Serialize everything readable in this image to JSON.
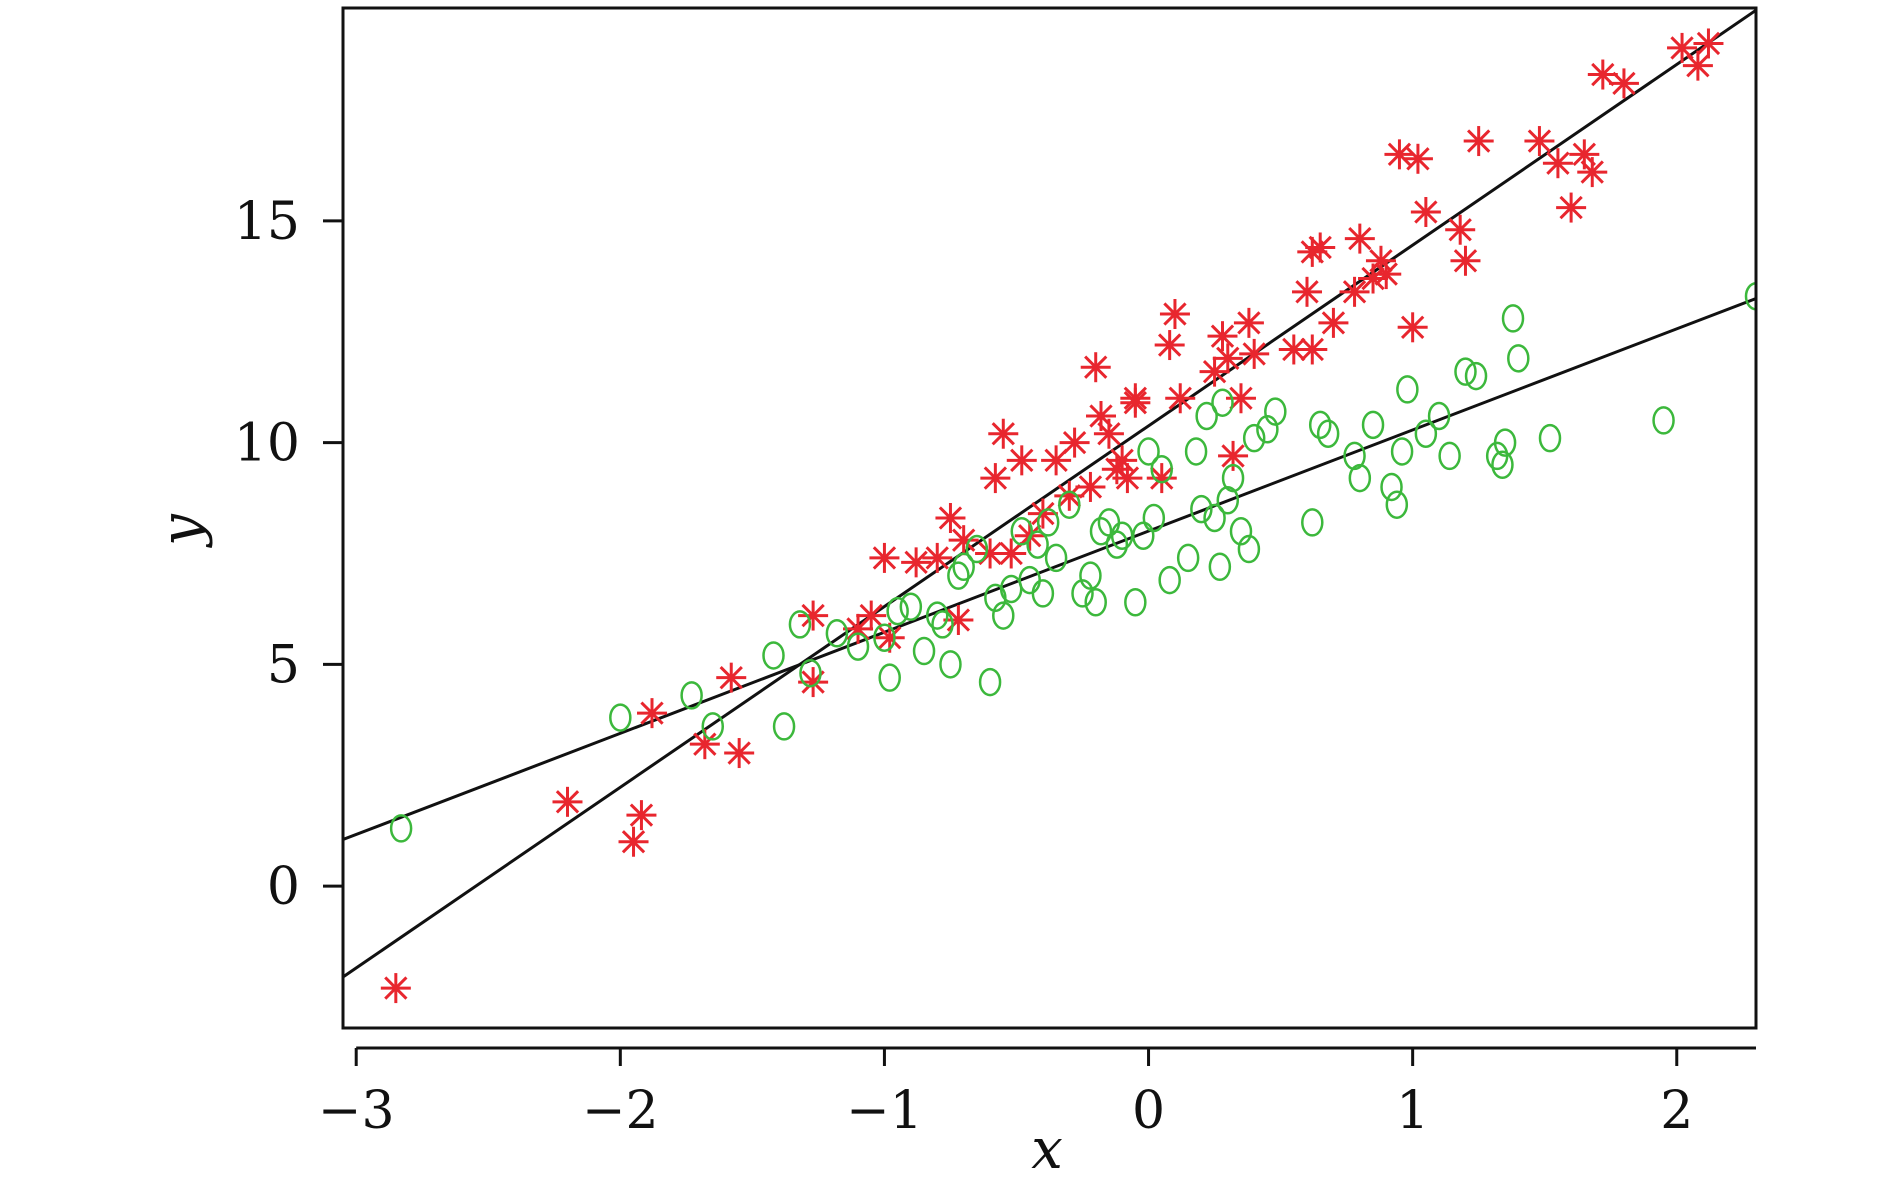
{
  "chart_data": {
    "type": "scatter",
    "title": "",
    "xlabel": "x",
    "ylabel": "y",
    "xlim": [
      -3.05,
      2.3
    ],
    "ylim": [
      -3.2,
      19.8
    ],
    "xticks": [
      -3,
      -2,
      -1,
      0,
      1,
      2
    ],
    "xtick_labels": [
      "−3",
      "−2",
      "−1",
      "0",
      "1",
      "2"
    ],
    "yticks": [
      0,
      5,
      10,
      15
    ],
    "ytick_labels": [
      "0",
      "5",
      "10",
      "15"
    ],
    "grid": false,
    "legend": "none",
    "colors": {
      "red": "#e8262e",
      "green": "#3cb83c",
      "line": "#111111"
    },
    "series": [
      {
        "marker": "asterisk",
        "color": "#e8262e",
        "x": [
          -2.85,
          -2.2,
          -1.95,
          -1.92,
          -1.88,
          -1.68,
          -1.58,
          -1.55,
          -1.27,
          -1.27,
          -1.1,
          -1.05,
          -1.0,
          -0.98,
          -0.88,
          -0.8,
          -0.75,
          -0.72,
          -0.7,
          -0.6,
          -0.58,
          -0.55,
          -0.52,
          -0.48,
          -0.45,
          -0.4,
          -0.35,
          -0.3,
          -0.28,
          -0.22,
          -0.2,
          -0.18,
          -0.15,
          -0.12,
          -0.1,
          -0.08,
          -0.05,
          -0.05,
          0.05,
          0.08,
          0.1,
          0.12,
          0.25,
          0.28,
          0.3,
          0.32,
          0.35,
          0.38,
          0.4,
          0.55,
          0.6,
          0.62,
          0.62,
          0.65,
          0.7,
          0.78,
          0.8,
          0.85,
          0.88,
          0.9,
          0.95,
          1.0,
          1.02,
          1.05,
          1.18,
          1.2,
          1.25,
          1.48,
          1.55,
          1.6,
          1.65,
          1.68,
          1.72,
          1.8,
          2.02,
          2.08,
          2.12
        ],
        "y": [
          -2.3,
          1.9,
          1.0,
          1.6,
          3.9,
          3.2,
          4.7,
          3.0,
          6.1,
          4.6,
          5.8,
          6.1,
          7.4,
          5.6,
          7.3,
          7.4,
          8.3,
          6.0,
          7.8,
          7.5,
          9.2,
          10.2,
          7.5,
          9.6,
          7.9,
          8.4,
          9.6,
          8.8,
          10.0,
          9.0,
          11.7,
          10.6,
          10.2,
          9.4,
          9.6,
          9.2,
          11.0,
          10.9,
          9.2,
          12.2,
          12.9,
          11.0,
          11.6,
          12.4,
          11.9,
          9.7,
          11.0,
          12.7,
          12.0,
          12.1,
          13.4,
          14.3,
          12.1,
          14.4,
          12.7,
          13.4,
          14.6,
          13.7,
          14.1,
          13.8,
          16.5,
          12.6,
          16.4,
          15.2,
          14.8,
          14.1,
          16.8,
          16.8,
          16.3,
          15.3,
          16.5,
          16.1,
          18.3,
          18.1,
          18.9,
          18.5,
          19.0
        ]
      },
      {
        "marker": "circle",
        "color": "#3cb83c",
        "x": [
          -2.83,
          -2.0,
          -1.73,
          -1.65,
          -1.42,
          -1.38,
          -1.32,
          -1.28,
          -1.18,
          -1.1,
          -1.0,
          -0.98,
          -0.95,
          -0.9,
          -0.85,
          -0.8,
          -0.78,
          -0.75,
          -0.72,
          -0.7,
          -0.65,
          -0.6,
          -0.58,
          -0.55,
          -0.52,
          -0.48,
          -0.45,
          -0.42,
          -0.4,
          -0.38,
          -0.35,
          -0.3,
          -0.25,
          -0.22,
          -0.2,
          -0.18,
          -0.15,
          -0.12,
          -0.1,
          -0.05,
          -0.02,
          0.0,
          0.02,
          0.05,
          0.08,
          0.15,
          0.18,
          0.2,
          0.22,
          0.25,
          0.27,
          0.28,
          0.3,
          0.32,
          0.35,
          0.38,
          0.4,
          0.45,
          0.48,
          0.62,
          0.65,
          0.68,
          0.78,
          0.8,
          0.85,
          0.92,
          0.94,
          0.96,
          0.98,
          1.05,
          1.1,
          1.14,
          1.2,
          1.24,
          1.32,
          1.34,
          1.35,
          1.38,
          1.4,
          1.52,
          1.95,
          2.3
        ],
        "y": [
          1.3,
          3.8,
          4.3,
          3.6,
          5.2,
          3.6,
          5.9,
          4.8,
          5.7,
          5.4,
          5.6,
          4.7,
          6.2,
          6.3,
          5.3,
          6.1,
          5.9,
          5.0,
          7.0,
          7.2,
          7.6,
          4.6,
          6.5,
          6.1,
          6.7,
          8.0,
          6.9,
          7.7,
          6.6,
          8.2,
          7.4,
          8.6,
          6.6,
          7.0,
          6.4,
          8.0,
          8.2,
          7.7,
          7.9,
          6.4,
          7.9,
          9.8,
          8.3,
          9.4,
          6.9,
          7.4,
          9.8,
          8.5,
          10.6,
          8.3,
          7.2,
          10.9,
          8.7,
          9.2,
          8.0,
          7.6,
          10.1,
          10.3,
          10.7,
          8.2,
          10.4,
          10.2,
          9.7,
          9.2,
          10.4,
          9.0,
          8.6,
          9.8,
          11.2,
          10.2,
          10.6,
          9.7,
          11.6,
          11.5,
          9.7,
          9.5,
          10.0,
          12.8,
          11.9,
          10.1,
          10.5,
          13.3
        ]
      }
    ],
    "fit_lines": [
      {
        "x": [
          -3.05,
          2.3
        ],
        "y": [
          -2.05,
          19.75
        ]
      },
      {
        "x": [
          -3.05,
          2.3
        ],
        "y": [
          1.05,
          13.25
        ]
      }
    ]
  }
}
